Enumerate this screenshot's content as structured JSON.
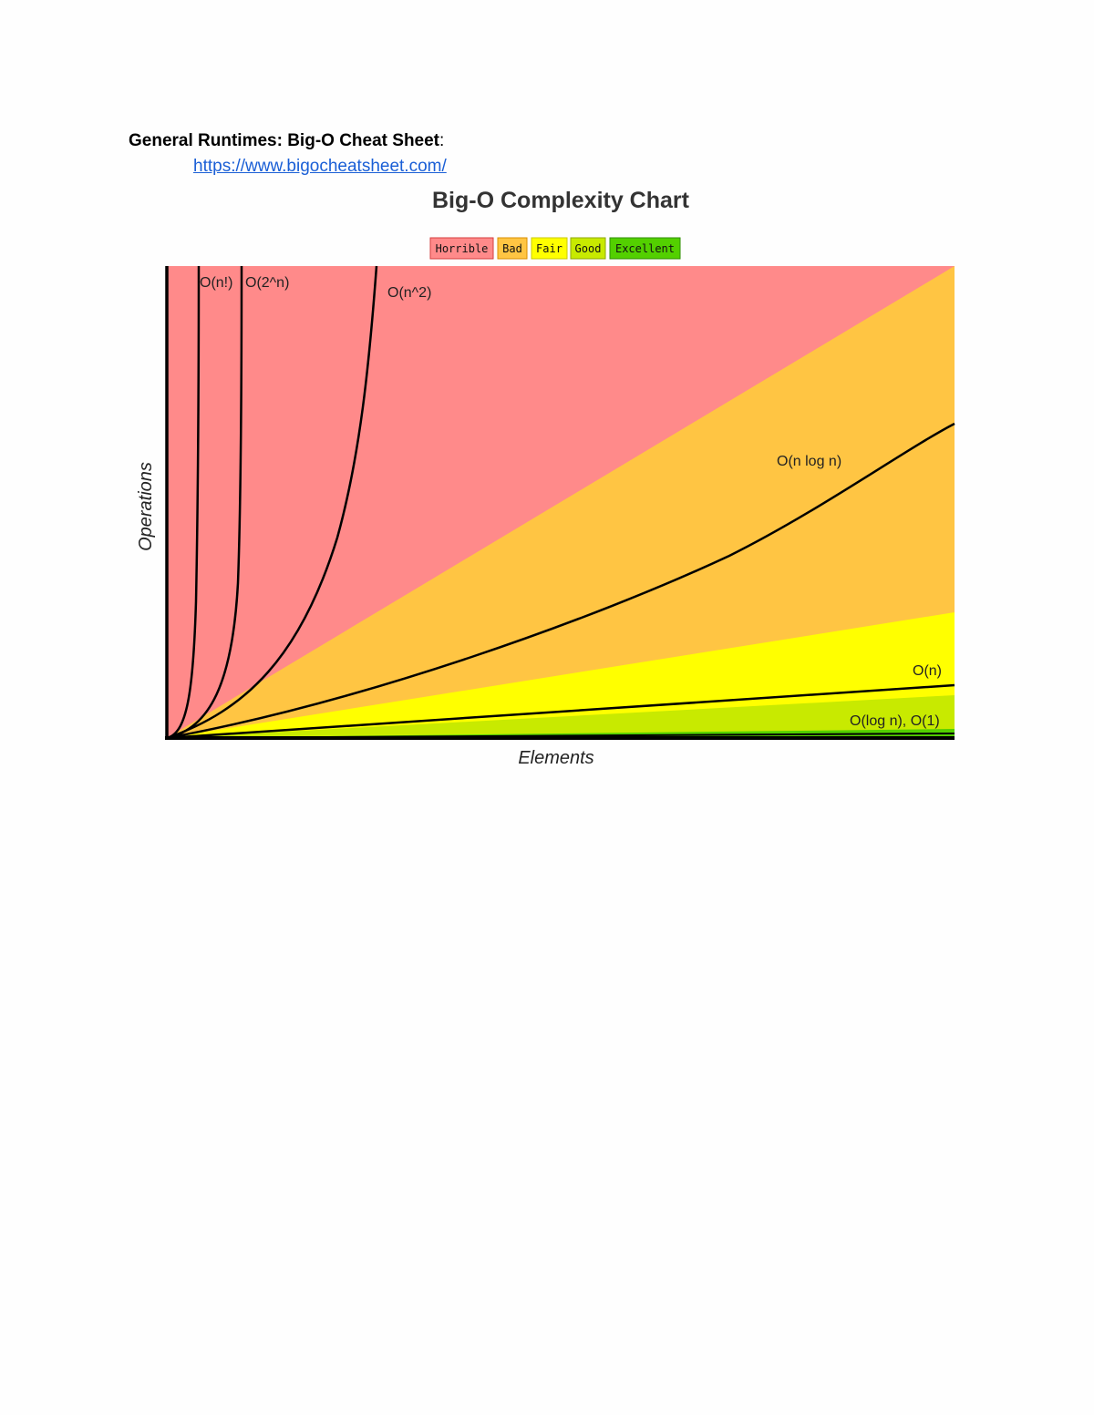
{
  "document": {
    "heading": "General Runtimes: Big-O Cheat Sheet",
    "heading_suffix": ":",
    "link": "https://www.bigocheatsheet.com/"
  },
  "chart_data": {
    "type": "area",
    "title": "Big-O Complexity Chart",
    "xlabel": "Elements",
    "ylabel": "Operations",
    "legend_position": "top-center",
    "legend": [
      {
        "label": "Horrible",
        "color": "#ff8a8a"
      },
      {
        "label": "Bad",
        "color": "#ffc543"
      },
      {
        "label": "Fair",
        "color": "#ffff00"
      },
      {
        "label": "Good",
        "color": "#c8ea00"
      },
      {
        "label": "Excellent",
        "color": "#53d000"
      }
    ],
    "regions": [
      {
        "label": "Horrible",
        "color": "#ff8a8a"
      },
      {
        "label": "Bad",
        "color": "#ffc543"
      },
      {
        "label": "Fair",
        "color": "#ffff00"
      },
      {
        "label": "Good",
        "color": "#c8ea00"
      },
      {
        "label": "Excellent",
        "color": "#53d000"
      }
    ],
    "curves": [
      {
        "name": "O(n!)",
        "label": "O(n!)"
      },
      {
        "name": "O(2^n)",
        "label": "O(2^n)"
      },
      {
        "name": "O(n^2)",
        "label": "O(n^2)"
      },
      {
        "name": "O(n log n)",
        "label": "O(n log n)"
      },
      {
        "name": "O(n)",
        "label": "O(n)"
      },
      {
        "name": "O(log n), O(1)",
        "label": "O(log n), O(1)"
      }
    ],
    "grid": false
  }
}
